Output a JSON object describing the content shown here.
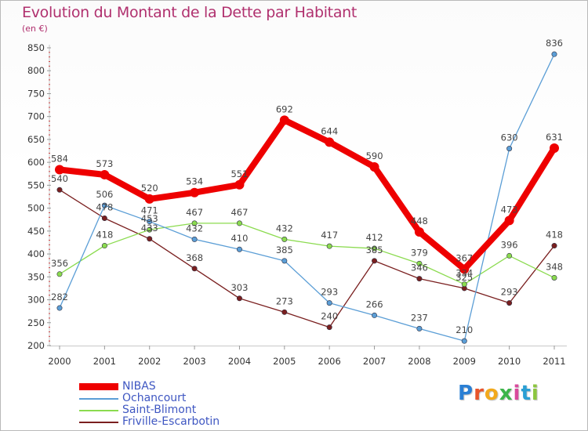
{
  "title": "Evolution du Montant de la Dette par Habitant",
  "subtitle": "(en €)",
  "chart_data": {
    "type": "line",
    "categories": [
      "2000",
      "2001",
      "2002",
      "2003",
      "2004",
      "2005",
      "2006",
      "2007",
      "2008",
      "2009",
      "2010",
      "2011"
    ],
    "ylim": [
      200,
      850
    ],
    "y_ticks": [
      200,
      250,
      300,
      350,
      400,
      450,
      500,
      550,
      600,
      650,
      700,
      750,
      800,
      850
    ],
    "grid": false,
    "legend_position": "bottom-left",
    "series": [
      {
        "name": "NIBAS",
        "color": "#ee0000",
        "values": [
          584,
          573,
          520,
          534,
          551,
          692,
          644,
          590,
          448,
          367,
          473,
          631
        ]
      },
      {
        "name": "Ochancourt",
        "color": "#5b9ed6",
        "values": [
          282,
          506,
          471,
          432,
          410,
          385,
          293,
          266,
          237,
          210,
          630,
          836
        ]
      },
      {
        "name": "Saint-Blimont",
        "color": "#8bdb4f",
        "values": [
          356,
          418,
          453,
          467,
          467,
          432,
          417,
          412,
          379,
          334,
          396,
          348
        ]
      },
      {
        "name": "Friville-Escarbotin",
        "color": "#7a1f1f",
        "values": [
          540,
          478,
          433,
          368,
          303,
          273,
          240,
          385,
          346,
          325,
          293,
          418
        ]
      }
    ],
    "data_labels": [
      [
        "584",
        "573",
        "520",
        "534",
        "551",
        "692",
        "644",
        "590",
        "448",
        "367",
        "473",
        "631"
      ],
      [
        "282",
        "506",
        "471",
        "432",
        "410",
        "385",
        "293",
        "266",
        "237",
        "210",
        "630",
        "836"
      ],
      [
        "356",
        "418",
        "453",
        "467",
        "467",
        "432",
        "417",
        "412",
        "379",
        "334",
        "396",
        "348"
      ],
      [
        "540",
        "478",
        "433",
        "368",
        "303",
        "273",
        "240",
        "385",
        "346",
        "325",
        "293",
        "418"
      ]
    ]
  },
  "logo": {
    "letters": [
      "P",
      "r",
      "o",
      "x",
      "i",
      "t",
      "i"
    ],
    "colors": [
      "#2a7fd4",
      "#e8542a",
      "#f2a91c",
      "#3cb54a",
      "#d94a9c",
      "#2a9fd4",
      "#8cc63f"
    ]
  }
}
